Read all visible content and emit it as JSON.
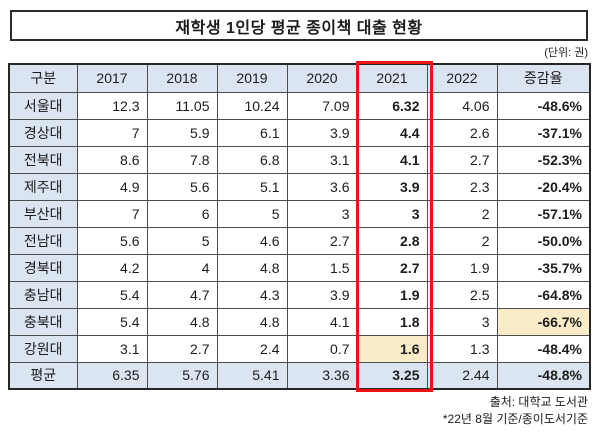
{
  "colors": {
    "header_bg": "#dbe5f1",
    "highlight_bg": "#faecc8",
    "red_box": "#ee1313",
    "text": "#1c1c1c"
  },
  "chart_data": {
    "type": "table",
    "title": "재학생 1인당 평균 종이책 대출 현황",
    "unit_note": "(단위: 권)",
    "columns": [
      "구분",
      "2017",
      "2018",
      "2019",
      "2020",
      "2021",
      "2022",
      "증감율"
    ],
    "highlighted_column": "2021",
    "rows": [
      {
        "label": "서울대",
        "values": [
          12.3,
          11.05,
          10.24,
          7.09,
          6.32,
          4.06
        ],
        "change": "-48.6%"
      },
      {
        "label": "경상대",
        "values": [
          7,
          5.9,
          6.1,
          3.9,
          4.4,
          2.6
        ],
        "change": "-37.1%"
      },
      {
        "label": "전북대",
        "values": [
          8.6,
          7.8,
          6.8,
          3.1,
          4.1,
          2.7
        ],
        "change": "-52.3%"
      },
      {
        "label": "제주대",
        "values": [
          4.9,
          5.6,
          5.1,
          3.6,
          3.9,
          2.3
        ],
        "change": "-20.4%"
      },
      {
        "label": "부산대",
        "values": [
          7,
          6,
          5,
          3,
          3,
          2
        ],
        "change": "-57.1%"
      },
      {
        "label": "전남대",
        "values": [
          5.6,
          5,
          4.6,
          2.7,
          2.8,
          2
        ],
        "change": "-50.0%"
      },
      {
        "label": "경북대",
        "values": [
          4.2,
          4,
          4.8,
          1.5,
          2.7,
          1.9
        ],
        "change": "-35.7%"
      },
      {
        "label": "충남대",
        "values": [
          5.4,
          4.7,
          4.3,
          3.9,
          1.9,
          2.5
        ],
        "change": "-64.8%"
      },
      {
        "label": "충북대",
        "values": [
          5.4,
          4.8,
          4.8,
          4.1,
          1.8,
          3
        ],
        "change": "-66.7%",
        "highlight_index": 6
      },
      {
        "label": "강원대",
        "values": [
          3.1,
          2.7,
          2.4,
          0.7,
          1.6,
          1.3
        ],
        "change": "-48.4%",
        "highlight_index": 4
      },
      {
        "label": "평균",
        "values": [
          6.35,
          5.76,
          5.41,
          3.36,
          3.25,
          2.44
        ],
        "change": "-48.8%",
        "summary": true
      }
    ],
    "bold_columns": [
      "2021",
      "증감율"
    ],
    "source": "출처: 대학교 도서관",
    "note": "*22년 8월 기준/종이도서기준"
  }
}
